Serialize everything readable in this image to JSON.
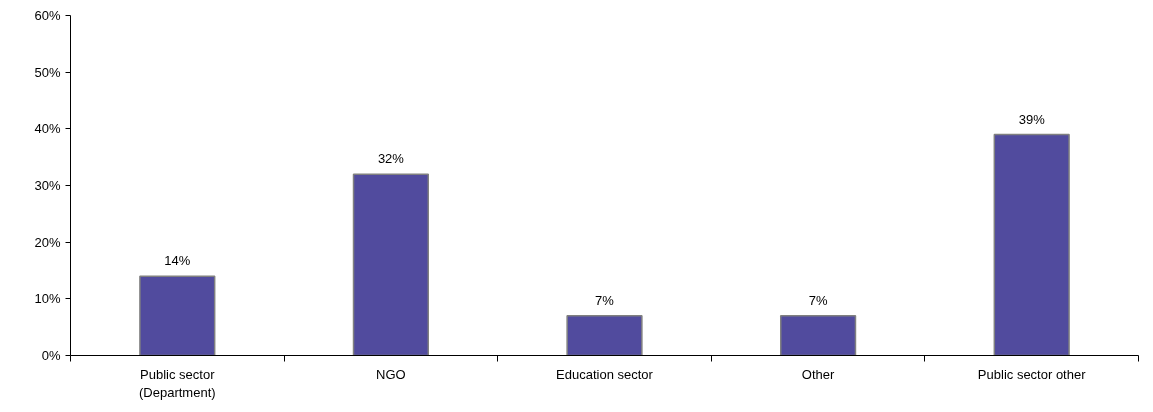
{
  "chart_data": {
    "type": "bar",
    "categories": [
      "Public sector\n(Department)",
      "NGO",
      "Education sector",
      "Other",
      "Public sector other"
    ],
    "values": [
      14,
      32,
      7,
      7,
      39
    ],
    "value_labels": [
      "14%",
      "32%",
      "7%",
      "7%",
      "39%"
    ],
    "color": "#514b9e",
    "ylim": [
      0,
      60
    ],
    "yticks": [
      {
        "value": 0,
        "label": "0%"
      },
      {
        "value": 10,
        "label": "10%"
      },
      {
        "value": 20,
        "label": "20%"
      },
      {
        "value": 30,
        "label": "30%"
      },
      {
        "value": 40,
        "label": "40%"
      },
      {
        "value": 50,
        "label": "50%"
      },
      {
        "value": 60,
        "label": "60%"
      }
    ],
    "grid": false
  }
}
